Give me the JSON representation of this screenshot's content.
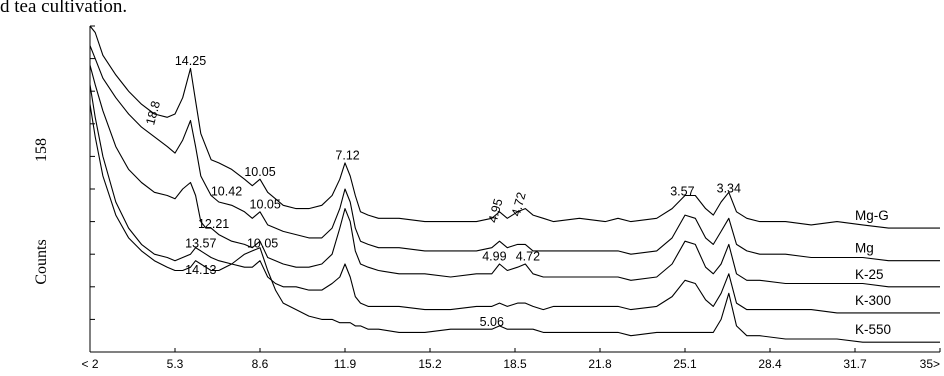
{
  "caption_fragment": "d tea cultivation.",
  "chart_data": {
    "type": "line",
    "title": "",
    "xlabel": "",
    "ylabel": "Counts",
    "y_scale_label": "158",
    "x_tick_labels": [
      "< 2",
      "5.3",
      "8.6",
      "11.9",
      "15.2",
      "18.5",
      "21.8",
      "25.1",
      "28.4",
      "31.7",
      "35>"
    ],
    "xlim": [
      2,
      35
    ],
    "ylim": [
      0,
      100
    ],
    "grid": false,
    "series": [
      {
        "name": "Mg-G",
        "x": [
          2,
          2.2,
          2.5,
          3,
          3.5,
          4,
          4.5,
          5,
          5.3,
          5.6,
          5.9,
          6.1,
          6.3,
          6.5,
          6.7,
          7,
          7.5,
          8,
          8.3,
          8.6,
          8.9,
          9.2,
          9.5,
          10,
          10.5,
          11,
          11.4,
          11.7,
          11.9,
          12.1,
          12.3,
          12.5,
          12.8,
          13.2,
          14,
          15,
          16,
          17,
          17.6,
          17.9,
          18.2,
          18.6,
          18.9,
          19.2,
          19.6,
          20,
          21,
          22,
          22.5,
          23,
          24,
          24.6,
          25.1,
          25.5,
          25.9,
          26.2,
          26.5,
          26.8,
          27.1,
          27.5,
          28,
          29,
          30,
          31,
          32,
          33,
          34,
          35
        ],
        "y": [
          100,
          98,
          91,
          85,
          80,
          76,
          73,
          72,
          73,
          78,
          87,
          77,
          67,
          63,
          59,
          58,
          56,
          53,
          51,
          53,
          49,
          47,
          45,
          44,
          44,
          45,
          48,
          53,
          58,
          54,
          48,
          43,
          42,
          41,
          41,
          40,
          40,
          40,
          41,
          43,
          41,
          43,
          44,
          42,
          41,
          40,
          41,
          40,
          41,
          40,
          41,
          44,
          48,
          48,
          44,
          42,
          46,
          49,
          43,
          41,
          40,
          40,
          39,
          40,
          39,
          38,
          38,
          38
        ]
      },
      {
        "name": "Mg",
        "x": [
          2,
          2.2,
          2.5,
          3,
          3.5,
          4,
          4.5,
          5,
          5.3,
          5.6,
          5.9,
          6.1,
          6.3,
          6.5,
          6.7,
          7,
          7.5,
          8,
          8.3,
          8.6,
          8.9,
          9.2,
          9.5,
          10,
          10.5,
          11,
          11.4,
          11.7,
          11.9,
          12.1,
          12.3,
          12.5,
          12.8,
          13.2,
          14,
          15,
          16,
          17,
          17.6,
          17.9,
          18.2,
          18.6,
          18.9,
          19.2,
          19.6,
          20,
          21,
          22,
          22.5,
          23,
          24,
          24.6,
          25.1,
          25.5,
          25.9,
          26.2,
          26.5,
          26.8,
          27.1,
          27.5,
          28,
          29,
          30,
          31,
          32,
          33,
          34,
          35
        ],
        "y": [
          94,
          90,
          84,
          78,
          73,
          69,
          66,
          63,
          61,
          65,
          71,
          63,
          54,
          51,
          48,
          46,
          45,
          43,
          41,
          43,
          39,
          38,
          37,
          36,
          35,
          35,
          38,
          44,
          50,
          46,
          38,
          34,
          33,
          32,
          32,
          31,
          31,
          31,
          32,
          34,
          32,
          33,
          33,
          31,
          31,
          31,
          31,
          31,
          31,
          30,
          31,
          35,
          42,
          41,
          35,
          33,
          37,
          41,
          33,
          31,
          30,
          30,
          29,
          29,
          29,
          28,
          28,
          28
        ]
      },
      {
        "name": "K-25",
        "x": [
          2,
          2.2,
          2.5,
          3,
          3.5,
          4,
          4.5,
          5,
          5.3,
          5.6,
          5.9,
          6.1,
          6.3,
          6.5,
          6.7,
          7,
          7.5,
          8,
          8.3,
          8.6,
          8.9,
          9.2,
          9.5,
          10,
          10.5,
          11,
          11.4,
          11.7,
          11.9,
          12.1,
          12.3,
          12.5,
          12.8,
          13.2,
          14,
          15,
          16,
          17,
          17.6,
          17.9,
          18.2,
          18.6,
          18.9,
          19.2,
          19.6,
          20,
          21,
          22,
          22.5,
          23,
          24,
          24.6,
          25.1,
          25.5,
          25.9,
          26.2,
          26.5,
          26.8,
          27.1,
          27.5,
          28,
          29,
          30,
          31,
          32,
          33,
          34,
          35
        ],
        "y": [
          88,
          82,
          74,
          63,
          56,
          52,
          49,
          48,
          47,
          50,
          52,
          48,
          40,
          38,
          38,
          36,
          34,
          33,
          32,
          34,
          29,
          28,
          27,
          26,
          26,
          27,
          30,
          38,
          44,
          40,
          31,
          27,
          26,
          25,
          24,
          24,
          23,
          24,
          24,
          27,
          25,
          26,
          27,
          24,
          23,
          23,
          23,
          23,
          23,
          22,
          23,
          27,
          34,
          33,
          26,
          24,
          27,
          33,
          24,
          22,
          22,
          21,
          21,
          21,
          21,
          20,
          20,
          20
        ]
      },
      {
        "name": "K-300",
        "x": [
          2,
          2.2,
          2.5,
          3,
          3.5,
          4,
          4.5,
          5,
          5.3,
          5.6,
          5.9,
          6.1,
          6.3,
          6.5,
          6.7,
          7,
          7.5,
          8,
          8.3,
          8.6,
          8.9,
          9.2,
          9.5,
          10,
          10.5,
          11,
          11.4,
          11.7,
          11.9,
          12.1,
          12.3,
          12.5,
          12.8,
          13.2,
          14,
          15,
          16,
          17,
          17.6,
          17.9,
          18.2,
          18.6,
          18.9,
          19.2,
          19.6,
          20,
          21,
          22,
          22.5,
          23,
          24,
          24.6,
          25.1,
          25.5,
          25.9,
          26.2,
          26.5,
          26.8,
          27.1,
          27.5,
          28,
          29,
          30,
          31,
          32,
          33,
          34,
          35
        ],
        "y": [
          82,
          72,
          60,
          46,
          38,
          33,
          30,
          29,
          28,
          29,
          30,
          32,
          31,
          30,
          29,
          28,
          27,
          26,
          26,
          28,
          23,
          21,
          20,
          20,
          19,
          19,
          21,
          23,
          27,
          23,
          17,
          15,
          14,
          14,
          14,
          13,
          13,
          14,
          14,
          15,
          14,
          15,
          15,
          14,
          13,
          14,
          14,
          14,
          14,
          13,
          14,
          17,
          22,
          21,
          16,
          14,
          18,
          24,
          15,
          13,
          13,
          13,
          13,
          12,
          12,
          12,
          12,
          12
        ]
      },
      {
        "name": "K-550",
        "x": [
          2,
          2.2,
          2.5,
          3,
          3.5,
          4,
          4.5,
          5,
          5.3,
          5.6,
          5.9,
          6.1,
          6.3,
          6.5,
          6.7,
          7,
          7.5,
          8,
          8.3,
          8.6,
          8.9,
          9.2,
          9.5,
          10,
          10.5,
          11,
          11.4,
          11.7,
          11.9,
          12.1,
          12.3,
          12.5,
          12.8,
          13.2,
          14,
          15,
          16,
          17,
          17.6,
          17.9,
          18.2,
          18.6,
          18.9,
          19.2,
          19.6,
          20,
          21,
          22,
          22.5,
          23,
          24,
          24.6,
          25.1,
          25.5,
          25.9,
          26.2,
          26.5,
          26.8,
          27.1,
          27.5,
          28,
          29,
          30,
          31,
          32,
          33,
          34,
          35
        ],
        "y": [
          76,
          66,
          54,
          42,
          35,
          31,
          28,
          26,
          25,
          25,
          26,
          28,
          27,
          26,
          25,
          25,
          27,
          30,
          31,
          32,
          25,
          19,
          15,
          13,
          11,
          10,
          10,
          9,
          9,
          9,
          8,
          8,
          7,
          7,
          6,
          6,
          7,
          7,
          7,
          8,
          7,
          7,
          7,
          7,
          6,
          6,
          6,
          6,
          6,
          5,
          6,
          6,
          6,
          6,
          6,
          6,
          10,
          18,
          8,
          5,
          5,
          4,
          4,
          4,
          3,
          3,
          3,
          3
        ]
      }
    ],
    "peak_annotations": [
      {
        "text": "18.8",
        "x": 4.6,
        "y": 73,
        "rotate": true
      },
      {
        "text": "14.25",
        "x": 5.9,
        "y": 88
      },
      {
        "text": "10.05",
        "x": 8.6,
        "y": 54
      },
      {
        "text": "10.42",
        "x": 7.3,
        "y": 48
      },
      {
        "text": "10.05",
        "x": 8.8,
        "y": 44
      },
      {
        "text": "12.21",
        "x": 6.8,
        "y": 38
      },
      {
        "text": "7.12",
        "x": 12.0,
        "y": 59
      },
      {
        "text": "4.95",
        "x": 17.9,
        "y": 43,
        "rotate": true
      },
      {
        "text": "4.72",
        "x": 18.8,
        "y": 45,
        "rotate": true
      },
      {
        "text": "3.57",
        "x": 25.0,
        "y": 48
      },
      {
        "text": "3.34",
        "x": 26.8,
        "y": 49
      },
      {
        "text": "4.99",
        "x": 17.7,
        "y": 28
      },
      {
        "text": "4.72",
        "x": 19.0,
        "y": 28
      },
      {
        "text": "13.57",
        "x": 6.3,
        "y": 32
      },
      {
        "text": "14.13",
        "x": 6.3,
        "y": 24
      },
      {
        "text": "10.05",
        "x": 8.7,
        "y": 32
      },
      {
        "text": "5.06",
        "x": 17.6,
        "y": 8
      }
    ]
  }
}
